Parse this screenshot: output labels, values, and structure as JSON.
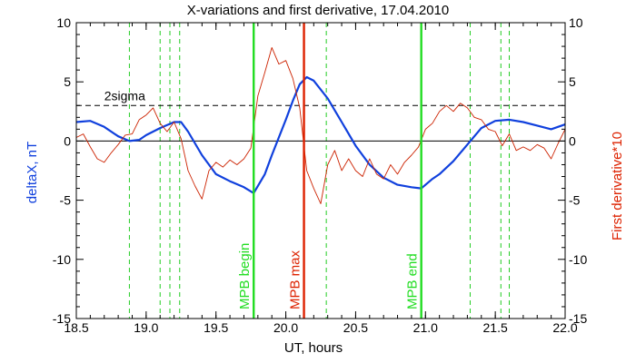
{
  "chart_data": {
    "type": "line",
    "title": "X-variations and first derivative, 17.04.2010",
    "xlabel": "UT, hours",
    "ylabel_left": "deltaX, nT",
    "ylabel_right": "First derivative*10",
    "xlim": [
      18.5,
      22.0
    ],
    "ylim_left": [
      -15,
      10
    ],
    "ylim_right": [
      -15,
      10
    ],
    "x_ticks": [
      "18.5",
      "19.0",
      "19.5",
      "20.0",
      "20.5",
      "21.0",
      "21.5",
      "22.0"
    ],
    "y_ticks": [
      "-15",
      "-10",
      "-5",
      "0",
      "5",
      "10"
    ],
    "grid": false,
    "reference_lines": [
      {
        "label": "2sigma",
        "y": 3.0,
        "style": "dashed",
        "color": "#000000"
      },
      {
        "label": "",
        "y": 0,
        "style": "solid",
        "color": "#000000"
      }
    ],
    "dashed_markers": {
      "color": "#22cc22",
      "x": [
        18.88,
        19.1,
        19.17,
        19.24,
        20.29,
        21.32,
        21.54,
        21.6
      ]
    },
    "events": [
      {
        "label": "MPB begin",
        "x": 19.77,
        "color": "#22dd22"
      },
      {
        "label": "MPB max",
        "x": 20.13,
        "color": "#dd2200"
      },
      {
        "label": "MPB end",
        "x": 20.97,
        "color": "#22dd22"
      }
    ],
    "series": [
      {
        "name": "deltaX, nT",
        "color": "#1040dd",
        "x": [
          18.5,
          18.6,
          18.7,
          18.8,
          18.88,
          18.95,
          19.0,
          19.1,
          19.2,
          19.25,
          19.3,
          19.4,
          19.5,
          19.6,
          19.7,
          19.77,
          19.85,
          19.9,
          20.0,
          20.05,
          20.1,
          20.15,
          20.2,
          20.3,
          20.4,
          20.5,
          20.6,
          20.7,
          20.8,
          20.9,
          20.97,
          21.05,
          21.1,
          21.2,
          21.3,
          21.4,
          21.5,
          21.6,
          21.7,
          21.8,
          21.9,
          22.0
        ],
        "values": [
          1.6,
          1.7,
          1.2,
          0.4,
          0.0,
          0.1,
          0.5,
          1.1,
          1.6,
          1.6,
          0.8,
          -1.2,
          -2.8,
          -3.4,
          -3.9,
          -4.4,
          -2.8,
          -1.2,
          1.8,
          3.4,
          4.8,
          5.4,
          5.1,
          3.6,
          1.6,
          -0.4,
          -2.0,
          -3.1,
          -3.7,
          -3.9,
          -4.0,
          -3.2,
          -2.8,
          -1.7,
          -0.3,
          1.1,
          1.7,
          1.8,
          1.6,
          1.3,
          1.0,
          1.4
        ]
      },
      {
        "name": "First derivative*10",
        "color": "#cc2200",
        "x": [
          18.5,
          18.55,
          18.6,
          18.65,
          18.7,
          18.75,
          18.8,
          18.85,
          18.9,
          18.95,
          19.0,
          19.05,
          19.1,
          19.15,
          19.2,
          19.25,
          19.3,
          19.35,
          19.4,
          19.45,
          19.5,
          19.55,
          19.6,
          19.65,
          19.7,
          19.75,
          19.8,
          19.85,
          19.9,
          19.95,
          20.0,
          20.05,
          20.1,
          20.15,
          20.2,
          20.25,
          20.3,
          20.35,
          20.4,
          20.45,
          20.5,
          20.55,
          20.6,
          20.65,
          20.7,
          20.75,
          20.8,
          20.85,
          20.9,
          20.95,
          21.0,
          21.05,
          21.1,
          21.15,
          21.2,
          21.25,
          21.3,
          21.35,
          21.4,
          21.45,
          21.5,
          21.55,
          21.6,
          21.65,
          21.7,
          21.75,
          21.8,
          21.85,
          21.9,
          21.95,
          22.0
        ],
        "values": [
          0.3,
          0.6,
          -0.5,
          -1.5,
          -1.8,
          -1.0,
          -0.3,
          0.5,
          0.6,
          1.8,
          2.2,
          2.8,
          1.5,
          0.8,
          1.6,
          0.2,
          -2.5,
          -3.8,
          -4.9,
          -2.5,
          -1.8,
          -2.2,
          -1.6,
          -2.0,
          -1.5,
          -0.6,
          3.8,
          5.8,
          7.9,
          6.5,
          6.8,
          5.3,
          2.8,
          -2.5,
          -4.0,
          -5.3,
          -2.0,
          -0.8,
          -2.5,
          -1.5,
          -2.5,
          -3.0,
          -1.5,
          -2.8,
          -3.2,
          -2.0,
          -2.8,
          -1.8,
          -1.2,
          -0.5,
          1.0,
          1.5,
          2.5,
          3.0,
          2.5,
          3.2,
          2.8,
          2.0,
          1.8,
          1.0,
          0.8,
          -0.4,
          0.6,
          -0.8,
          -0.5,
          -0.8,
          -0.3,
          -0.6,
          -1.5,
          -0.2,
          1.0
        ]
      }
    ]
  }
}
